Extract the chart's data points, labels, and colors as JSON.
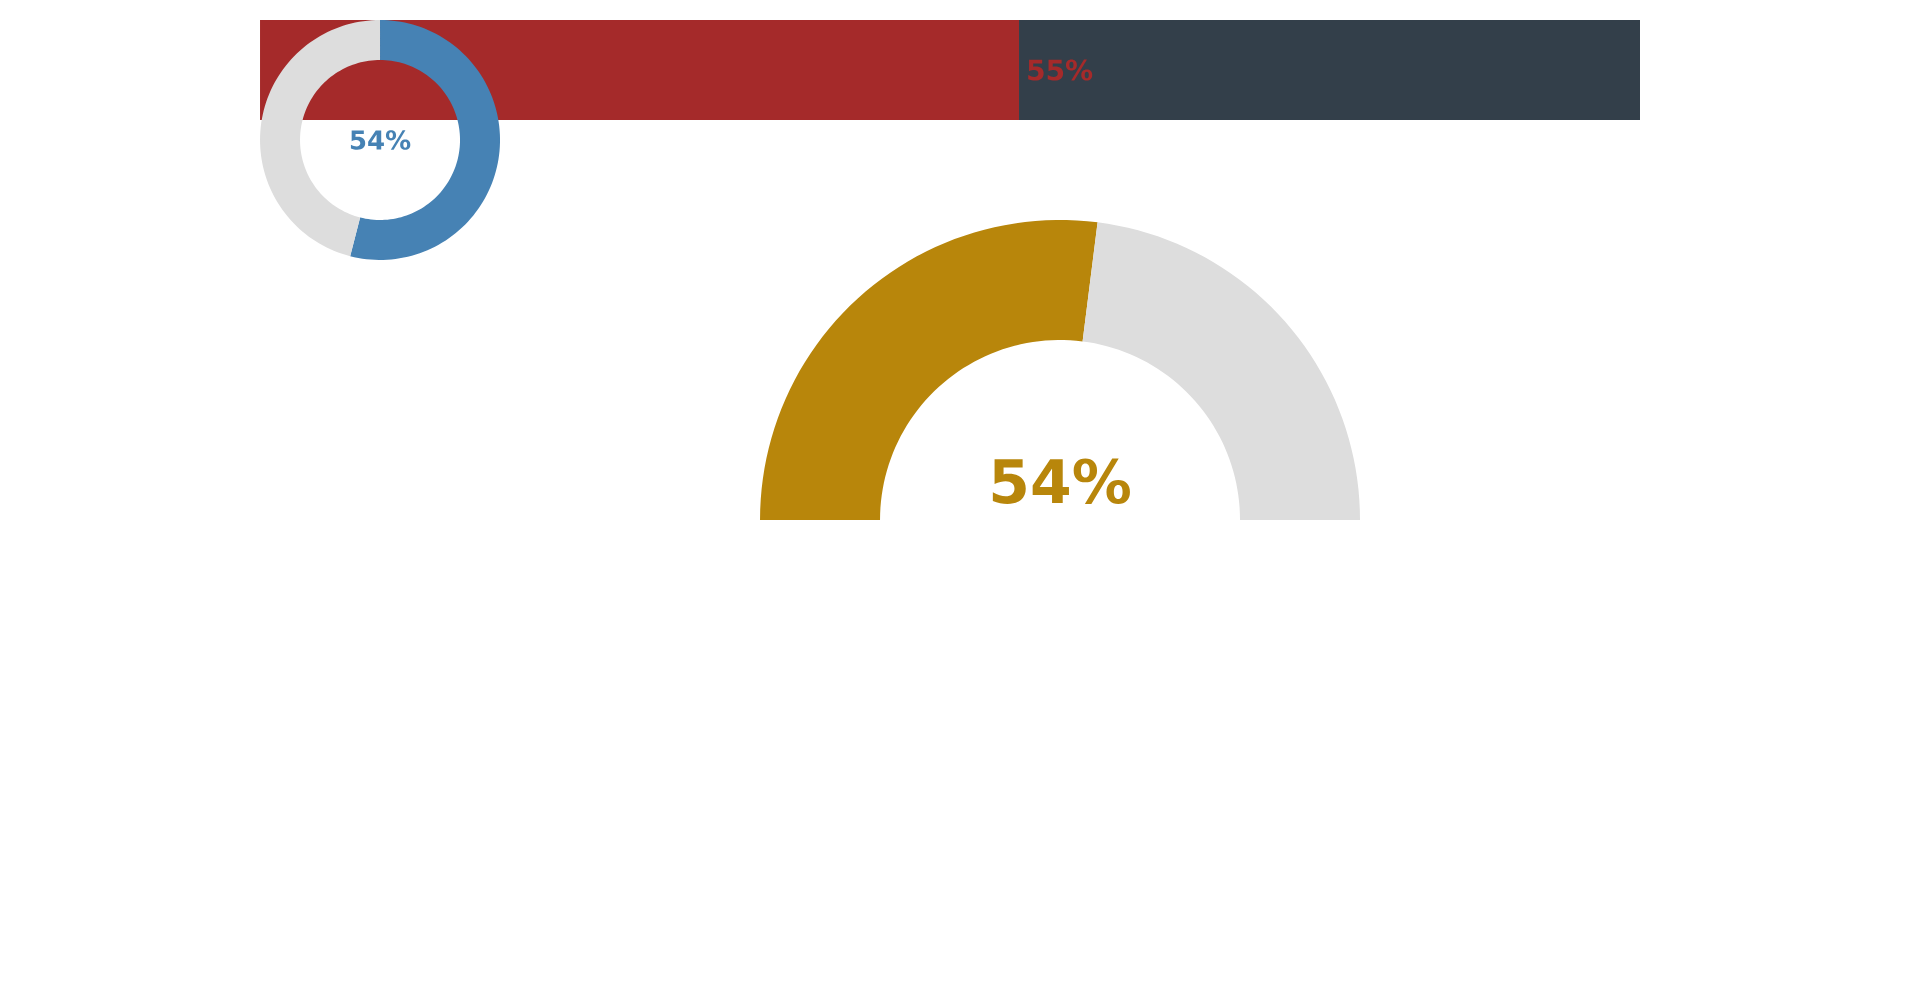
{
  "chart_data": [
    {
      "type": "bar",
      "orientation": "horizontal",
      "stacked": true,
      "categories": [
        null
      ],
      "xlim": [
        0,
        100
      ],
      "tick_labels": false,
      "series": [
        {
          "color": "#a52a2a",
          "values": [
            55
          ],
          "value_labels": [
            "55%"
          ]
        },
        {
          "color": "#333f4a",
          "values": [
            45
          ]
        }
      ]
    },
    {
      "type": "donut",
      "categories": [
        null,
        null
      ],
      "values": [
        54,
        46
      ],
      "colors": [
        "#4682b4",
        "#dddddd"
      ],
      "value_labels": [
        "54%",
        null
      ]
    },
    {
      "type": "donut",
      "categories": [
        null,
        null
      ],
      "values": [
        54,
        46
      ],
      "colors": [
        "#b8860b",
        "#dddddd"
      ],
      "value_labels": [
        "54%",
        null
      ]
    }
  ]
}
